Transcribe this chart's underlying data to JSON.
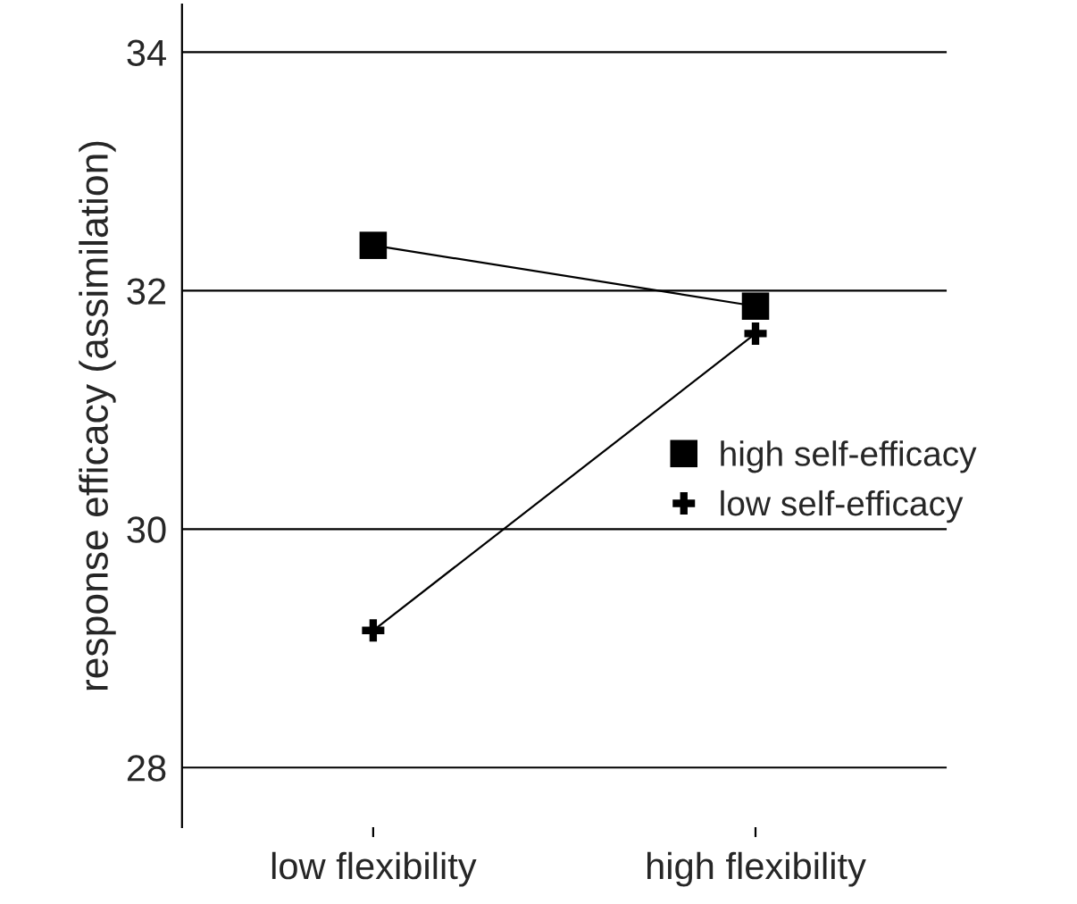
{
  "chart_data": {
    "type": "line",
    "ylabel": "response efficacy (assimilation)",
    "categories": [
      "low flexibility",
      "high flexibility"
    ],
    "series": [
      {
        "name": "high self-efficacy",
        "color": "#000000",
        "marker": "square",
        "values": [
          32.38,
          31.87
        ]
      },
      {
        "name": "low self-efficacy",
        "color": "#000000",
        "marker": "cross",
        "values": [
          29.15,
          31.64
        ]
      }
    ],
    "ylim": [
      27.5,
      34.4
    ],
    "yticks": [
      28,
      30,
      32,
      34
    ],
    "grid": "y",
    "legend": "right",
    "line_style": "solid"
  }
}
